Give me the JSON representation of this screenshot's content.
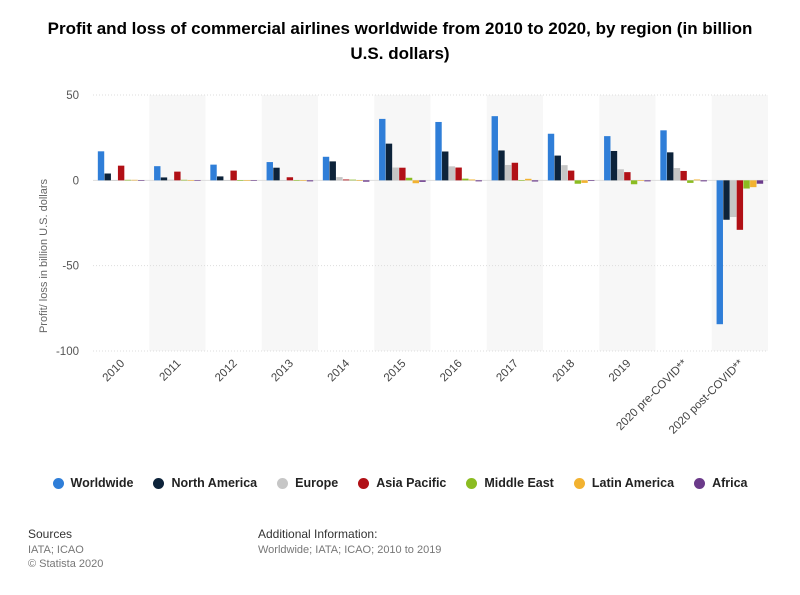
{
  "chart_data": {
    "type": "bar",
    "title": "Profit and loss of commercial airlines worldwide from 2010 to 2020, by region (in billion U.S. dollars)",
    "ylabel": "Profit/ loss in billion U.S. dollars",
    "xlabel": "",
    "ylim": [
      -100,
      50
    ],
    "yticks": [
      50,
      0,
      -50,
      -100
    ],
    "grid": true,
    "legend_position": "bottom",
    "categories": [
      "2010",
      "2011",
      "2012",
      "2013",
      "2014",
      "2015",
      "2016",
      "2017",
      "2018",
      "2019",
      "2020 pre-COVID**",
      "2020 post-COVID**"
    ],
    "series": [
      {
        "name": "Worldwide",
        "color": "#2f7ed8",
        "values": [
          17,
          8.3,
          9.2,
          10.7,
          13.8,
          36,
          34.2,
          37.6,
          27.3,
          25.9,
          29.3,
          -84.3
        ]
      },
      {
        "name": "North America",
        "color": "#0d233a",
        "values": [
          4,
          1.7,
          2.3,
          7.4,
          11.1,
          21.5,
          16.9,
          17.5,
          14.5,
          17.2,
          16.4,
          -23.1
        ]
      },
      {
        "name": "Europe",
        "color": "#c6c6c6",
        "values": [
          0.2,
          0.4,
          0,
          0.2,
          1.9,
          7.5,
          8.2,
          9,
          8.9,
          6.5,
          7.2,
          -21.5
        ]
      },
      {
        "name": "Asia Pacific",
        "color": "#b11016",
        "values": [
          8.6,
          5.1,
          5.7,
          1.8,
          0.5,
          7.4,
          7.5,
          10.3,
          5.7,
          4.8,
          5.5,
          -29
        ]
      },
      {
        "name": "Middle East",
        "color": "#8bbc21",
        "values": [
          0.3,
          0.3,
          0,
          0.2,
          0.4,
          1.5,
          1,
          0.2,
          -2,
          -2.3,
          -1.5,
          -4.8
        ]
      },
      {
        "name": "Latin America",
        "color": "#f2b230",
        "values": [
          0.3,
          0.2,
          0.1,
          -0.3,
          0,
          -1.7,
          0.5,
          0.9,
          -1.5,
          0.1,
          0.5,
          -4
        ]
      },
      {
        "name": "Africa",
        "color": "#6b3a8a",
        "values": [
          0.1,
          0.1,
          0,
          -0.6,
          -0.8,
          -0.9,
          -0.6,
          -0.7,
          -0.4,
          -0.6,
          -0.6,
          -2
        ]
      }
    ]
  },
  "footer": {
    "sources_heading": "Sources",
    "sources_line1": "IATA; ICAO",
    "sources_line2": "© Statista 2020",
    "additional_heading": "Additional Information:",
    "additional_line1": "Worldwide; IATA; ICAO; 2010 to 2019"
  }
}
